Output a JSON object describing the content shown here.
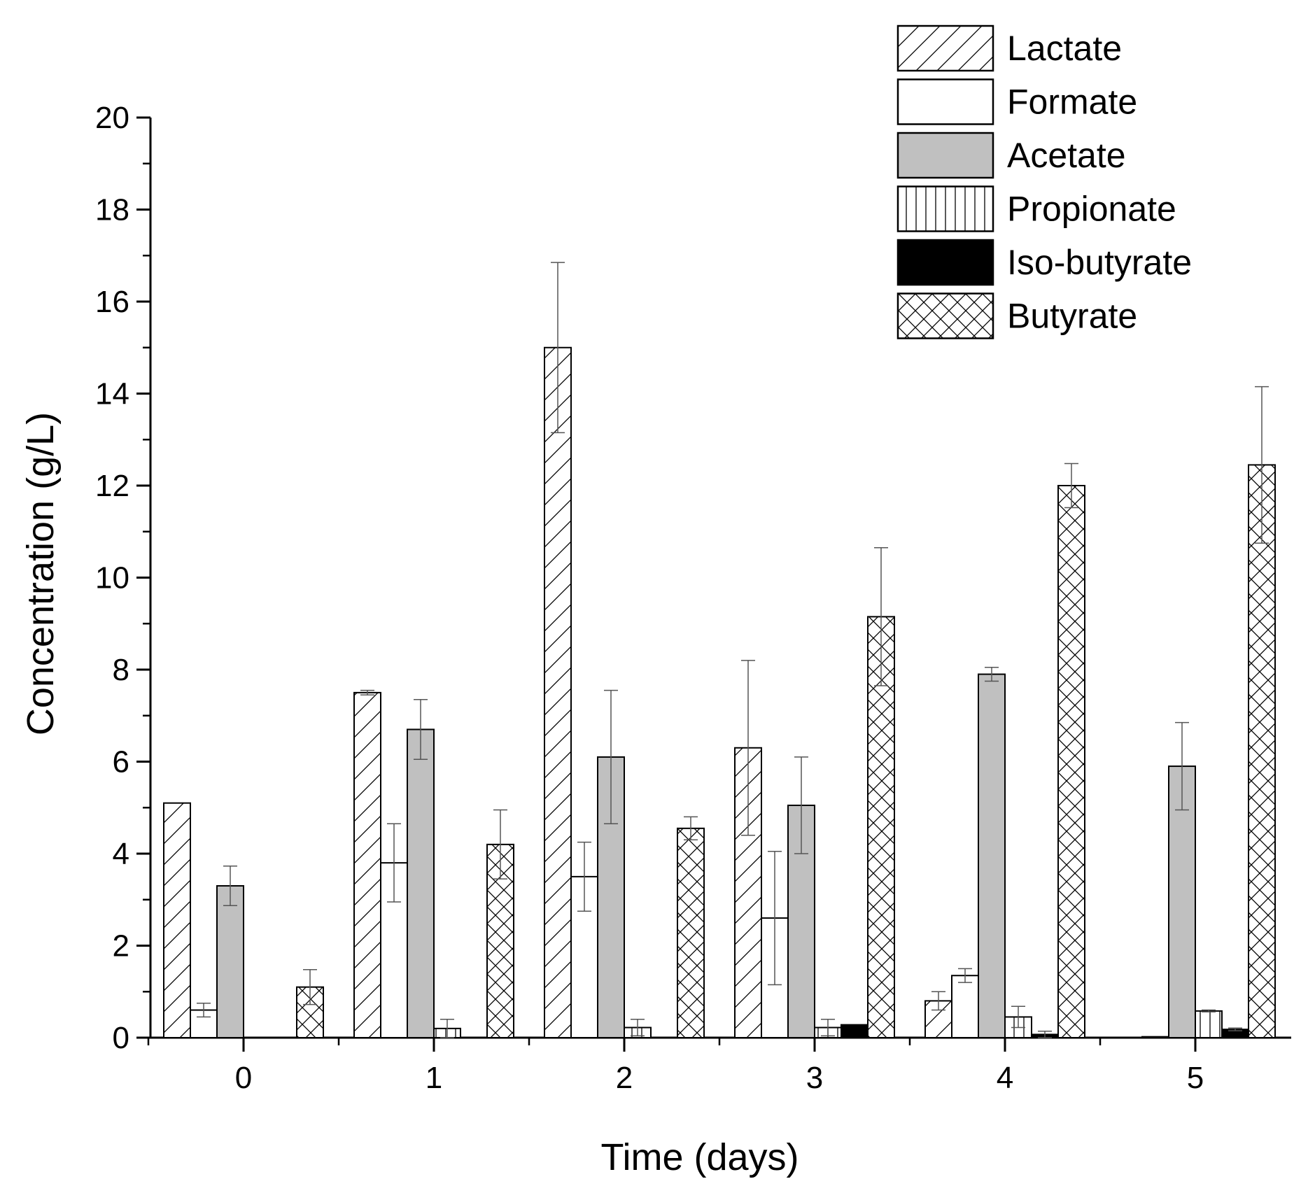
{
  "chart_data": {
    "type": "bar",
    "title": "",
    "xlabel": "Time (days)",
    "ylabel": "Concentration (g/L)",
    "ylim": [
      0,
      20
    ],
    "yticks": [
      0,
      2,
      4,
      6,
      8,
      10,
      12,
      14,
      16,
      18,
      20
    ],
    "categories": [
      "0",
      "1",
      "2",
      "3",
      "4",
      "5"
    ],
    "grid": false,
    "legend_position": "top-right",
    "series": [
      {
        "name": "Lactate",
        "pattern": "diagonal-hatch",
        "color": "#000000",
        "values": [
          5.1,
          7.5,
          15.0,
          6.3,
          0.8,
          0.0
        ],
        "errors": [
          0.0,
          0.05,
          1.85,
          1.9,
          0.2,
          0.0
        ]
      },
      {
        "name": "Formate",
        "pattern": "open",
        "color": "#000000",
        "values": [
          0.6,
          3.8,
          3.5,
          2.6,
          1.35,
          0.02
        ],
        "errors": [
          0.15,
          0.85,
          0.75,
          1.45,
          0.15,
          0.0
        ]
      },
      {
        "name": "Acetate",
        "pattern": "gray-fill",
        "color": "#c0c0c0",
        "values": [
          3.3,
          6.7,
          6.1,
          5.05,
          7.9,
          5.9
        ],
        "errors": [
          0.43,
          0.65,
          1.45,
          1.05,
          0.15,
          0.95
        ]
      },
      {
        "name": "Propionate",
        "pattern": "vertical-hatch",
        "color": "#000000",
        "values": [
          0.0,
          0.2,
          0.22,
          0.22,
          0.45,
          0.58
        ],
        "errors": [
          0.0,
          0.2,
          0.18,
          0.18,
          0.23,
          0.02
        ]
      },
      {
        "name": "Iso-butyrate",
        "pattern": "black-fill",
        "color": "#000000",
        "values": [
          0.0,
          0.0,
          0.0,
          0.28,
          0.07,
          0.18
        ],
        "errors": [
          0.0,
          0.0,
          0.0,
          0.0,
          0.07,
          0.03
        ]
      },
      {
        "name": "Butyrate",
        "pattern": "cross-hatch",
        "color": "#000000",
        "values": [
          1.1,
          4.2,
          4.55,
          9.15,
          12.0,
          12.45
        ],
        "errors": [
          0.38,
          0.75,
          0.25,
          1.5,
          0.48,
          1.7
        ]
      }
    ]
  }
}
